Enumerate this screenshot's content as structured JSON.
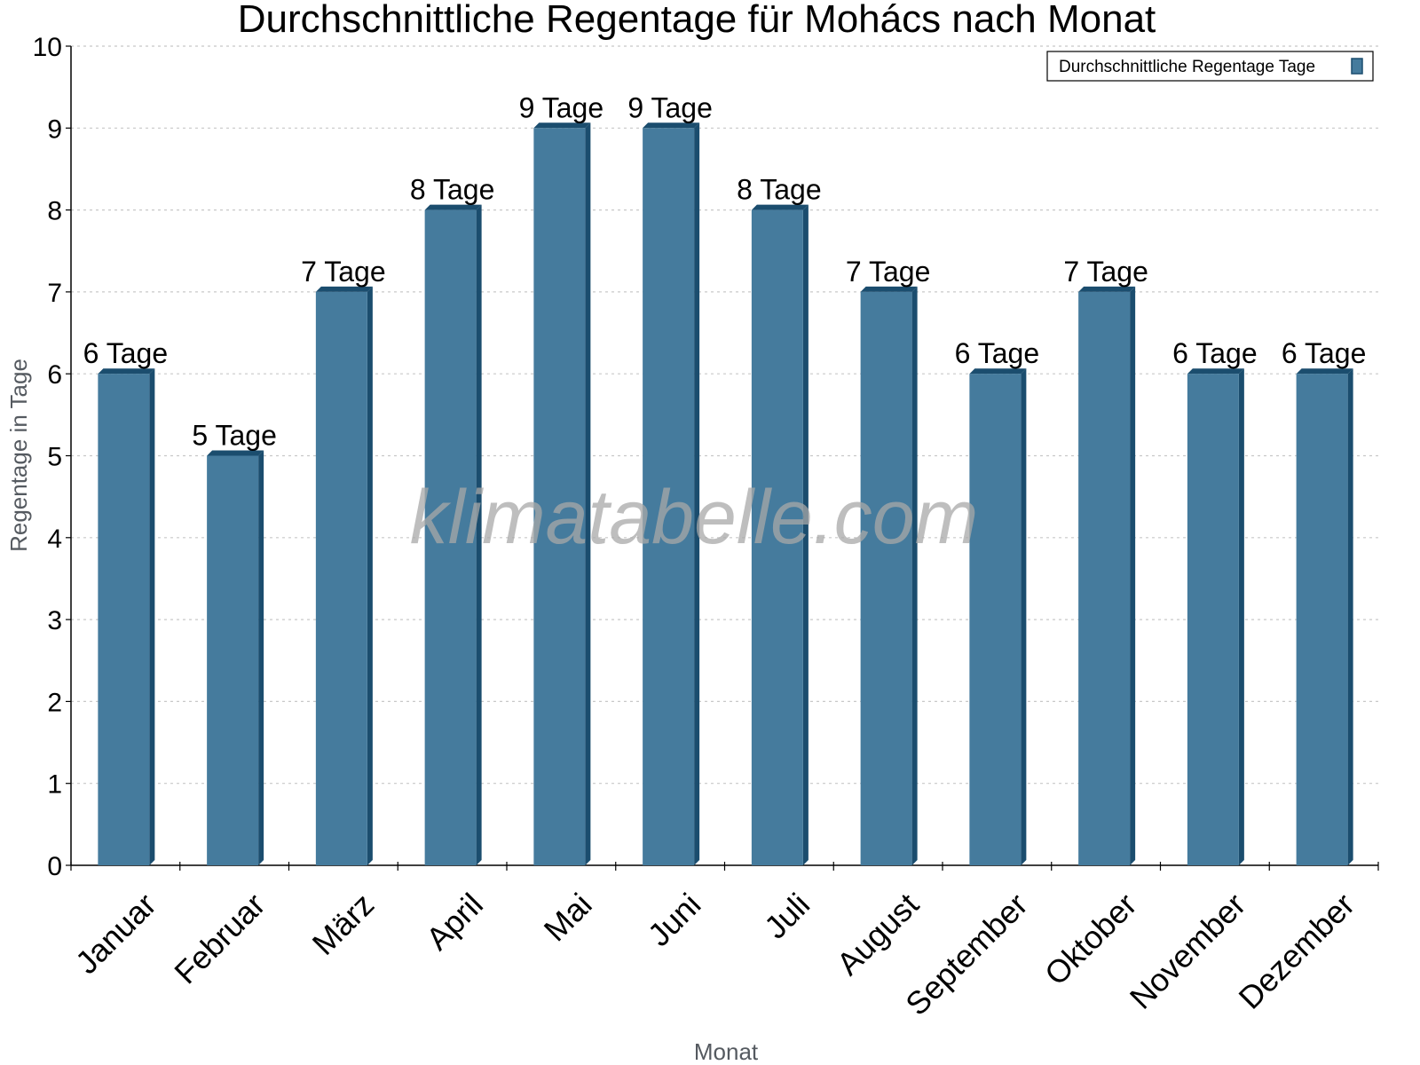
{
  "chart_data": {
    "type": "bar",
    "title": "Durchschnittliche Regentage für Mohács nach Monat",
    "xlabel": "Monat",
    "ylabel": "Regentage in Tage",
    "categories": [
      "Januar",
      "Februar",
      "März",
      "April",
      "Mai",
      "Juni",
      "Juli",
      "August",
      "September",
      "Oktober",
      "November",
      "Dezember"
    ],
    "series": [
      {
        "name": "Durchschnittliche Regentage Tage",
        "values": [
          6,
          5,
          7,
          8,
          9,
          9,
          8,
          7,
          6,
          7,
          6,
          6
        ],
        "color": "#457b9d",
        "side_color": "#1b4d6e"
      }
    ],
    "value_suffix": " Tage",
    "ylim": [
      0,
      10
    ],
    "yticks": [
      0,
      1,
      2,
      3,
      4,
      5,
      6,
      7,
      8,
      9,
      10
    ],
    "grid": true,
    "legend_position": "top-right"
  },
  "watermark": "klimatabelle.com",
  "legend": {
    "label": "Durchschnittliche Regentage Tage"
  }
}
